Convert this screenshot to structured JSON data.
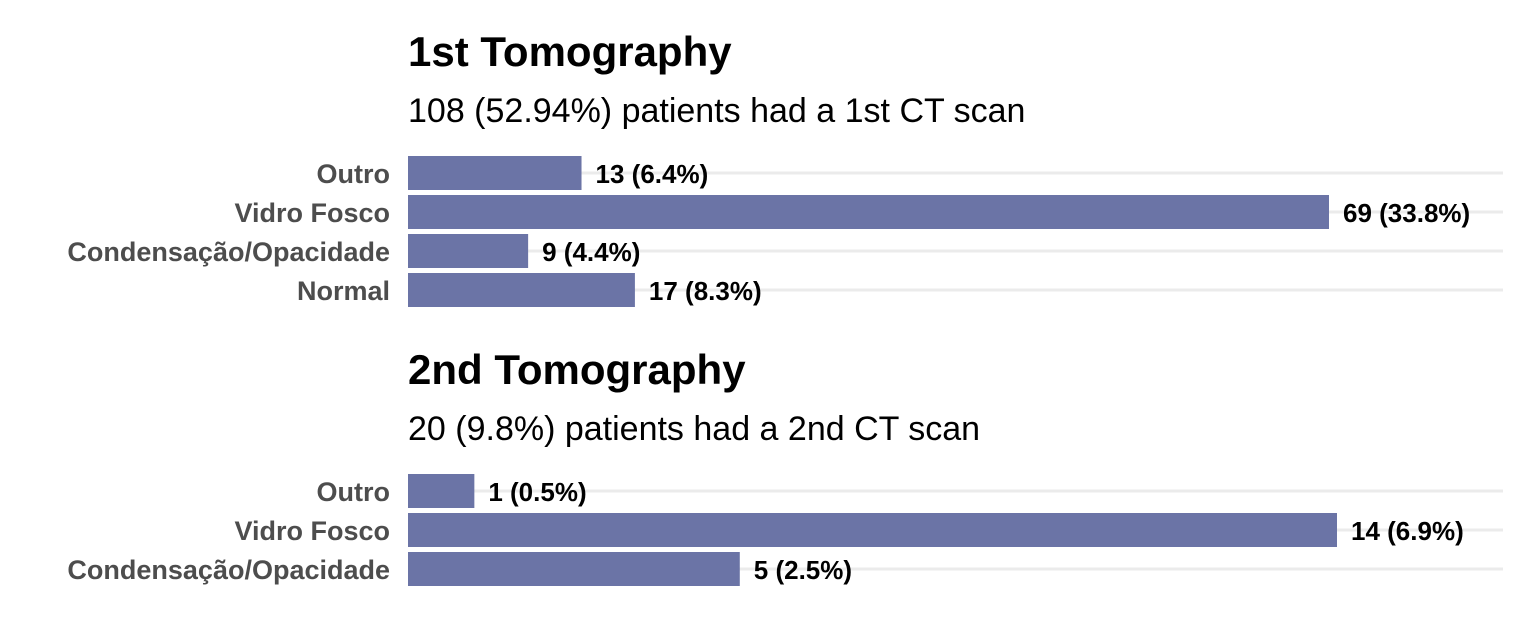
{
  "chart_data": [
    {
      "type": "bar",
      "orientation": "horizontal",
      "title": "1st Tomography",
      "subtitle": "108 (52.94%) patients had a 1st CT scan",
      "categories": [
        "Outro",
        "Vidro Fosco",
        "Condensação/Opacidade",
        "Normal"
      ],
      "values": [
        13,
        69,
        9,
        17
      ],
      "data_labels": [
        "13 (6.4%)",
        "69 (33.8%)",
        "9 (4.4%)",
        "17 (8.3%)"
      ],
      "xlim": [
        0,
        69
      ],
      "grid": "horizontal",
      "bar_color": "#6b74a6"
    },
    {
      "type": "bar",
      "orientation": "horizontal",
      "title": "2nd Tomography",
      "subtitle": "20 (9.8%) patients had a 2nd CT scan",
      "categories": [
        "Outro",
        "Vidro Fosco",
        "Condensação/Opacidade"
      ],
      "values": [
        1,
        14,
        5
      ],
      "data_labels": [
        "1 (0.5%)",
        "14 (6.9%)",
        "5 (2.5%)"
      ],
      "xlim": [
        0,
        14
      ],
      "grid": "horizontal",
      "bar_color": "#6b74a6"
    }
  ]
}
